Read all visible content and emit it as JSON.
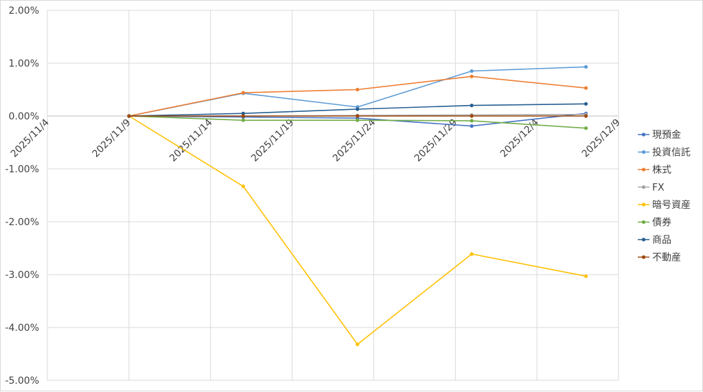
{
  "chart_data": {
    "type": "line",
    "title": "",
    "xlabel": "",
    "ylabel": "",
    "x_ticks": [
      "2025/11/4",
      "2025/11/9",
      "2025/11/14",
      "2025/11/19",
      "2025/11/24",
      "2025/11/29",
      "2025/12/4",
      "2025/12/9"
    ],
    "x_range": [
      "2025/11/4",
      "2025/12/9"
    ],
    "y_ticks": [
      "2.00%",
      "1.00%",
      "0.00%",
      "-1.00%",
      "-2.00%",
      "-3.00%",
      "-4.00%",
      "-5.00%"
    ],
    "ylim": [
      -5.0,
      2.0
    ],
    "y_unit": "%",
    "grid": true,
    "legend_position": "right",
    "x": [
      "2025/11/9",
      "2025/11/16",
      "2025/11/23",
      "2025/11/30",
      "2025/12/7"
    ],
    "series": [
      {
        "name": "現預金",
        "color": "#4472c4",
        "values": [
          0.0,
          -0.02,
          -0.04,
          -0.19,
          0.05
        ]
      },
      {
        "name": "投資信託",
        "color": "#5b9bd5",
        "values": [
          0.0,
          0.43,
          0.17,
          0.85,
          0.93
        ]
      },
      {
        "name": "株式",
        "color": "#ed7d31",
        "values": [
          0.0,
          0.44,
          0.5,
          0.75,
          0.53
        ]
      },
      {
        "name": "FX",
        "color": "#a5a5a5",
        "values": [
          0.0,
          0.0,
          0.01,
          0.02,
          0.03
        ]
      },
      {
        "name": "暗号資産",
        "color": "#ffc000",
        "values": [
          0.0,
          -1.33,
          -4.32,
          -2.61,
          -3.03
        ]
      },
      {
        "name": "債券",
        "color": "#70ad47",
        "values": [
          0.0,
          -0.08,
          -0.08,
          -0.09,
          -0.23
        ]
      },
      {
        "name": "商品",
        "color": "#255e91",
        "values": [
          0.0,
          0.05,
          0.13,
          0.2,
          0.23
        ]
      },
      {
        "name": "不動産",
        "color": "#9e480e",
        "values": [
          0.0,
          0.0,
          0.0,
          0.0,
          0.0
        ]
      }
    ]
  }
}
